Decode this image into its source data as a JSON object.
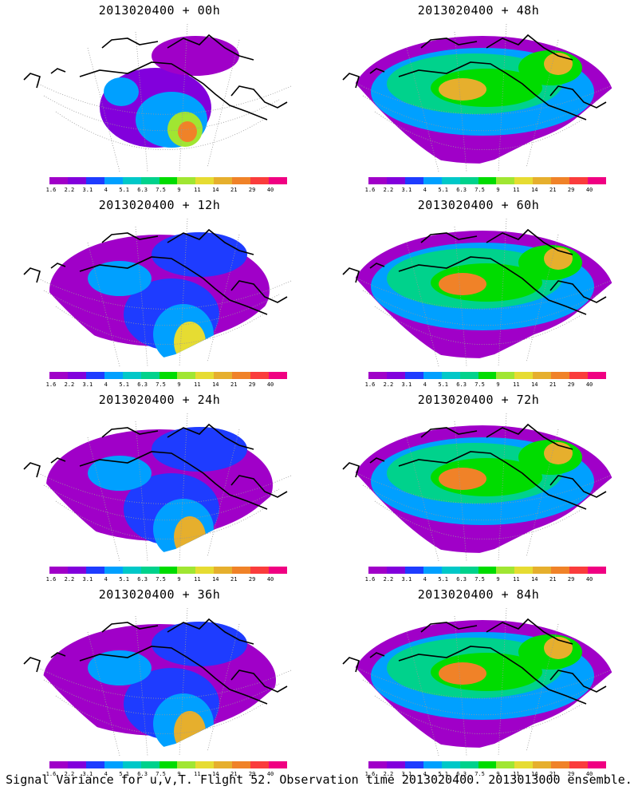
{
  "caption": "Signal Variance for u,v,T. Flight 52. Observation time 2013020400. 2013013000 ensemble.",
  "colorbar": {
    "labels": [
      "1.6",
      "2.2",
      "3.1",
      "4",
      "5.1",
      "6.3",
      "7.5",
      "9",
      "11",
      "14",
      "21",
      "29",
      "40"
    ],
    "colors": [
      "#a000c8",
      "#8200dc",
      "#1e3cff",
      "#00a0ff",
      "#00c8c8",
      "#00d28c",
      "#00dc00",
      "#a0e632",
      "#e6dc32",
      "#e6af2d",
      "#f08228",
      "#fa3c3c",
      "#f00082"
    ]
  },
  "panels": [
    {
      "title": "2013020400 + 00h",
      "intensity": 1,
      "lead_hours": 0
    },
    {
      "title": "2013020400 + 48h",
      "intensity": 5,
      "lead_hours": 48
    },
    {
      "title": "2013020400 + 12h",
      "intensity": 2,
      "lead_hours": 12
    },
    {
      "title": "2013020400 + 60h",
      "intensity": 6,
      "lead_hours": 60
    },
    {
      "title": "2013020400 + 24h",
      "intensity": 3,
      "lead_hours": 24
    },
    {
      "title": "2013020400 + 72h",
      "intensity": 7,
      "lead_hours": 72
    },
    {
      "title": "2013020400 + 36h",
      "intensity": 4,
      "lead_hours": 36
    },
    {
      "title": "2013020400 + 84h",
      "intensity": 8,
      "lead_hours": 84
    }
  ]
}
